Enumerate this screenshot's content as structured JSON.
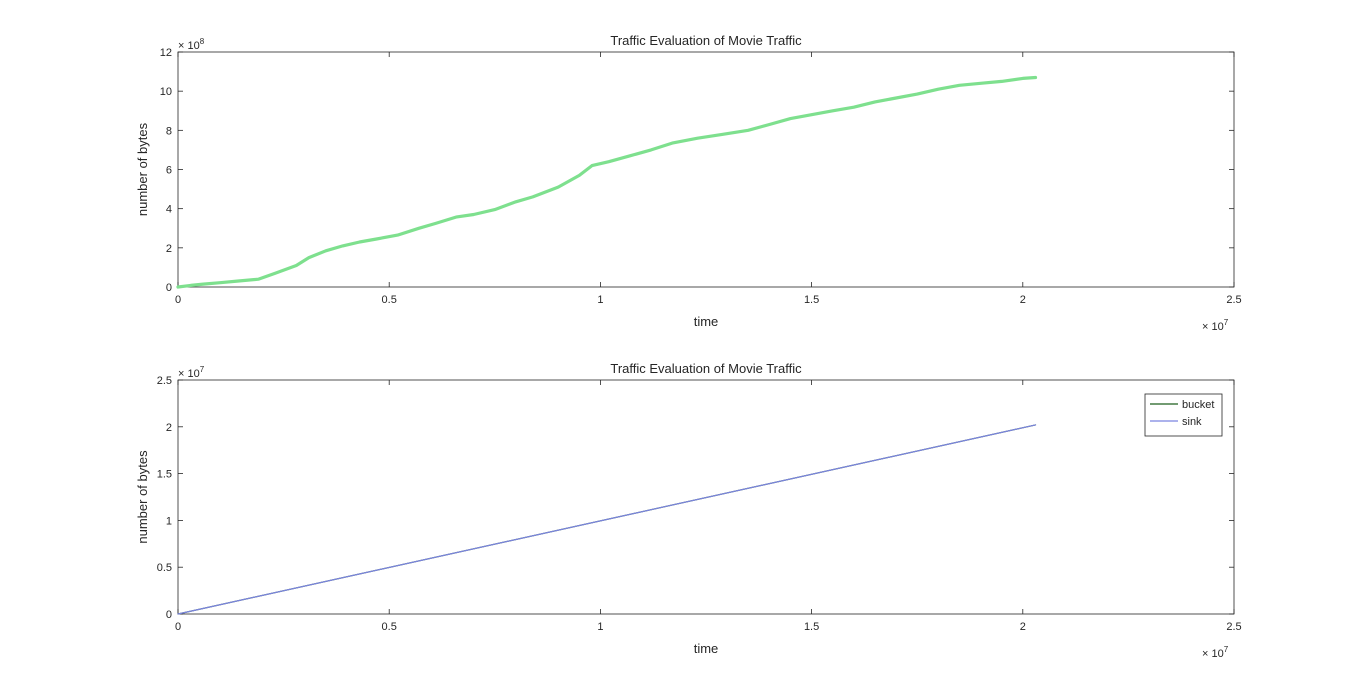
{
  "chart_data": [
    {
      "type": "line",
      "title": "Traffic Evaluation of Movie Traffic",
      "xlabel": "time",
      "ylabel": "number of bytes",
      "xlim": [
        0,
        25000000
      ],
      "ylim": [
        0,
        1200000000
      ],
      "x_exponent_label": "× 10",
      "x_exponent": "7",
      "y_exponent_label": "× 10",
      "y_exponent": "8",
      "xticks": [
        0,
        5000000,
        10000000,
        15000000,
        20000000,
        25000000
      ],
      "xtick_labels": [
        "0",
        "0.5",
        "1",
        "1.5",
        "2",
        "2.5"
      ],
      "yticks": [
        0,
        200000000,
        400000000,
        600000000,
        800000000,
        1000000000,
        1200000000
      ],
      "ytick_labels": [
        "0",
        "2",
        "4",
        "6",
        "8",
        "10",
        "12"
      ],
      "grid": false,
      "series": [
        {
          "color": "#7ee08e",
          "x": [
            0,
            300000,
            600000,
            1000000,
            1400000,
            1900000,
            2300000,
            2800000,
            3100000,
            3500000,
            3900000,
            4300000,
            4700000,
            5200000,
            5700000,
            6100000,
            6600000,
            7000000,
            7500000,
            8000000,
            8400000,
            9000000,
            9500000,
            9800000,
            10200000,
            10700000,
            11200000,
            11700000,
            12300000,
            12900000,
            13500000,
            14000000,
            14500000,
            15000000,
            15500000,
            16000000,
            16500000,
            17000000,
            17500000,
            18000000,
            18500000,
            19000000,
            19500000,
            20000000,
            20300000
          ],
          "y": [
            0,
            8000000,
            15000000,
            22000000,
            30000000,
            40000000,
            70000000,
            110000000,
            150000000,
            185000000,
            210000000,
            230000000,
            245000000,
            265000000,
            300000000,
            325000000,
            358000000,
            370000000,
            395000000,
            435000000,
            460000000,
            510000000,
            570000000,
            620000000,
            640000000,
            670000000,
            700000000,
            735000000,
            760000000,
            780000000,
            800000000,
            830000000,
            860000000,
            880000000,
            900000000,
            918000000,
            945000000,
            965000000,
            985000000,
            1010000000,
            1030000000,
            1040000000,
            1050000000,
            1065000000,
            1070000000
          ]
        }
      ]
    },
    {
      "type": "line",
      "title": "Traffic Evaluation of Movie Traffic",
      "xlabel": "time",
      "ylabel": "number of bytes",
      "xlim": [
        0,
        25000000
      ],
      "ylim": [
        0,
        25000000
      ],
      "x_exponent_label": "× 10",
      "x_exponent": "7",
      "y_exponent_label": "× 10",
      "y_exponent": "7",
      "xticks": [
        0,
        5000000,
        10000000,
        15000000,
        20000000,
        25000000
      ],
      "xtick_labels": [
        "0",
        "0.5",
        "1",
        "1.5",
        "2",
        "2.5"
      ],
      "yticks": [
        0,
        5000000,
        10000000,
        15000000,
        20000000,
        25000000
      ],
      "ytick_labels": [
        "0",
        "0.5",
        "1",
        "1.5",
        "2",
        "2.5"
      ],
      "grid": false,
      "legend_placement": "top-right",
      "series": [
        {
          "name": "bucket",
          "color": "#1f5f1f",
          "x": [
            0,
            20300000
          ],
          "y": [
            0,
            20200000
          ]
        },
        {
          "name": "sink",
          "color": "#7b83e0",
          "x": [
            0,
            20300000
          ],
          "y": [
            0,
            20200000
          ]
        }
      ]
    }
  ]
}
